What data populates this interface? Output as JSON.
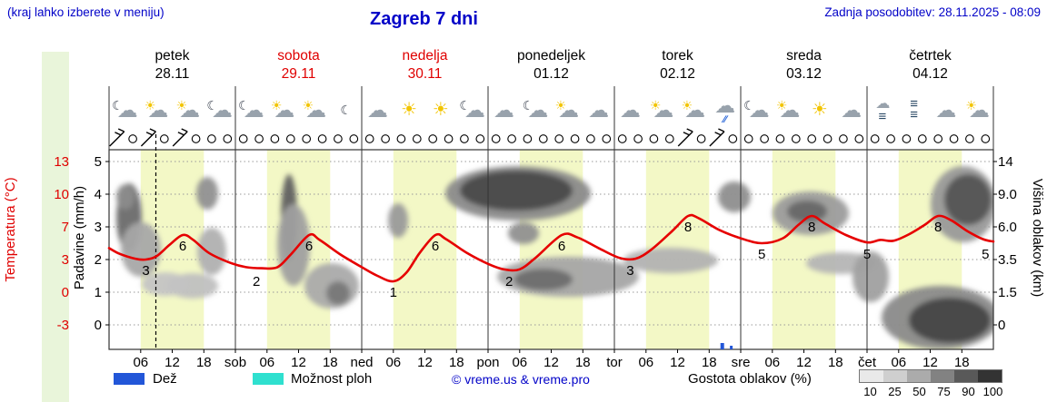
{
  "header": {
    "hint": "(kraj lahko izberete v meniju)",
    "title": "Zagreb 7 dni",
    "updated": "Zadnja posodobitev: 28.11.2025 - 08:09"
  },
  "days": [
    {
      "name": "petek",
      "date": "28.11",
      "red": false
    },
    {
      "name": "sobota",
      "date": "29.11",
      "red": true
    },
    {
      "name": "nedelja",
      "date": "30.11",
      "red": true
    },
    {
      "name": "ponedeljek",
      "date": "01.12",
      "red": false
    },
    {
      "name": "torek",
      "date": "02.12",
      "red": false
    },
    {
      "name": "sreda",
      "date": "03.12",
      "red": false
    },
    {
      "name": "četrtek",
      "date": "04.12",
      "red": false
    }
  ],
  "icons": [
    "moon-cloud",
    "cloud-sun",
    "cloud-sun",
    "moon-cloud",
    "moon-cloud",
    "cloud-sun",
    "cloud-sun",
    "moon",
    "cloud",
    "sun",
    "sun",
    "moon-cloud",
    "cloud",
    "moon-cloud",
    "cloud-sun",
    "cloud",
    "cloud",
    "cloud-sun",
    "cloud-sun",
    "rain-cloud",
    "moon-cloud",
    "cloud-sun",
    "sun",
    "cloud",
    "fog-cloud",
    "fog",
    "cloud",
    "cloud-sun"
  ],
  "axes": {
    "temp": {
      "label": "Temperatura (°C)",
      "ticks": [
        "13",
        "10",
        "7",
        "3",
        "0",
        "-3"
      ]
    },
    "precip": {
      "label": "Padavine (mm/h)",
      "ticks": [
        "5",
        "4",
        "3",
        "2",
        "1",
        "0"
      ]
    },
    "cloud": {
      "label": "Višina oblakov (km)",
      "ticks": [
        "14",
        "9.0",
        "6.0",
        "3.5",
        "1.5",
        "0"
      ]
    }
  },
  "xticks": [
    "06",
    "12",
    "18",
    "sob",
    "06",
    "12",
    "18",
    "ned",
    "06",
    "12",
    "18",
    "pon",
    "06",
    "12",
    "18",
    "tor",
    "06",
    "12",
    "18",
    "sre",
    "06",
    "12",
    "18",
    "čet",
    "06",
    "12",
    "18"
  ],
  "legend": {
    "rain": "Dež",
    "showers": "Možnost ploh",
    "copyright": "© vreme.us & vreme.pro",
    "density_title": "Gostota oblakov (%)",
    "density_ticks": [
      "10",
      "25",
      "50",
      "75",
      "90",
      "100"
    ]
  },
  "colors": {
    "accent_blue": "#0202c8",
    "red": "#e00000",
    "curve": "#e60000",
    "dayband": "#f3f8c6",
    "leftstrip": "#e9f5da",
    "rain": "#2256d8",
    "showers": "#2fe0cf",
    "density_grays": [
      "#e9e9e9",
      "#cfcfcf",
      "#ababab",
      "#828282",
      "#595959",
      "#333333"
    ]
  },
  "chart_data": {
    "type": "line",
    "title": "Zagreb 7 dni",
    "x_unit": "hours from 00:00 petek 28.11 (0-168, 7 days)",
    "ylabel_left": "Temperatura (°C) / Padavine (mm/h)",
    "ylabel_right": "Višina oblakov (km)",
    "temp_axis_ticks": [
      13,
      10,
      7,
      3,
      0,
      -3
    ],
    "precip_axis_ticks": [
      5,
      4,
      3,
      2,
      1,
      0
    ],
    "cloud_height_ticks_km": [
      14,
      9.0,
      6.0,
      3.5,
      1.5,
      0
    ],
    "now_hour": 8.9,
    "series": [
      {
        "name": "Temperatura (°C)",
        "points": [
          [
            0,
            4.4
          ],
          [
            2,
            3.7
          ],
          [
            5,
            3.1
          ],
          [
            7,
            3.0
          ],
          [
            9,
            3.4
          ],
          [
            11.5,
            4.8
          ],
          [
            14,
            6.0
          ],
          [
            16,
            5.4
          ],
          [
            19,
            3.8
          ],
          [
            23,
            2.7
          ],
          [
            26,
            2.3
          ],
          [
            29,
            2.2
          ],
          [
            32,
            2.3
          ],
          [
            34.5,
            3.6
          ],
          [
            38,
            6.0
          ],
          [
            40,
            5.4
          ],
          [
            44,
            3.6
          ],
          [
            48,
            2.3
          ],
          [
            51,
            1.5
          ],
          [
            54,
            1.0
          ],
          [
            56.5,
            1.8
          ],
          [
            59,
            3.8
          ],
          [
            62,
            6.0
          ],
          [
            64,
            5.5
          ],
          [
            68,
            3.8
          ],
          [
            72,
            2.6
          ],
          [
            75,
            2.1
          ],
          [
            78,
            2.1
          ],
          [
            81,
            3.2
          ],
          [
            86,
            6.0
          ],
          [
            89,
            5.7
          ],
          [
            93,
            4.4
          ],
          [
            97,
            3.2
          ],
          [
            100,
            3.1
          ],
          [
            103,
            4.2
          ],
          [
            107,
            6.5
          ],
          [
            110,
            8.0
          ],
          [
            112,
            7.8
          ],
          [
            116,
            6.6
          ],
          [
            120,
            5.6
          ],
          [
            124,
            5.0
          ],
          [
            128,
            5.6
          ],
          [
            131,
            7.2
          ],
          [
            133.5,
            8.0
          ],
          [
            136,
            7.3
          ],
          [
            140,
            6.0
          ],
          [
            144,
            5.1
          ],
          [
            146.5,
            5.4
          ],
          [
            149,
            5.3
          ],
          [
            152,
            6.1
          ],
          [
            155,
            7.2
          ],
          [
            157.5,
            8.0
          ],
          [
            160,
            7.6
          ],
          [
            163,
            6.5
          ],
          [
            166,
            5.5
          ],
          [
            168,
            5.2
          ]
        ]
      }
    ],
    "point_labels": [
      {
        "h": 7,
        "v": 3
      },
      {
        "h": 14,
        "v": 6
      },
      {
        "h": 28,
        "v": 2
      },
      {
        "h": 38,
        "v": 6
      },
      {
        "h": 54,
        "v": 1
      },
      {
        "h": 62,
        "v": 6
      },
      {
        "h": 76,
        "v": 2
      },
      {
        "h": 86,
        "v": 6
      },
      {
        "h": 99,
        "v": 3
      },
      {
        "h": 110,
        "v": 8
      },
      {
        "h": 124,
        "v": 5
      },
      {
        "h": 133.5,
        "v": 8
      },
      {
        "h": 144,
        "v": 5
      },
      {
        "h": 157.5,
        "v": 8
      },
      {
        "h": 166.5,
        "v": 5
      }
    ],
    "day_bands_hours": [
      6,
      18
    ],
    "rain_bars": [
      {
        "h": 116.5,
        "w": 4,
        "hp": 7
      },
      {
        "h": 118.2,
        "w": 3,
        "hp": 4
      }
    ],
    "wind_barb_slots": [
      0,
      2,
      4,
      36,
      38
    ],
    "clouds": [
      {
        "x": 22,
        "y": 75,
        "rx": 14,
        "ry": 38,
        "c": "#6a6a6a"
      },
      {
        "x": 35,
        "y": 110,
        "rx": 22,
        "ry": 30,
        "c": "#a8a8a8"
      },
      {
        "x": 18,
        "y": 52,
        "rx": 10,
        "ry": 14,
        "c": "#8c8c8c"
      },
      {
        "x": 108,
        "y": 48,
        "rx": 12,
        "ry": 18,
        "c": "#909090"
      },
      {
        "x": 113,
        "y": 112,
        "rx": 16,
        "ry": 26,
        "c": "#b0b0b0"
      },
      {
        "x": 92,
        "y": 150,
        "rx": 28,
        "ry": 14,
        "c": "#c0c0c0"
      },
      {
        "x": 198,
        "y": 75,
        "rx": 9,
        "ry": 48,
        "c": "#606060"
      },
      {
        "x": 203,
        "y": 105,
        "rx": 18,
        "ry": 45,
        "c": "#a0a0a0"
      },
      {
        "x": 245,
        "y": 150,
        "rx": 30,
        "ry": 25,
        "c": "#aaaaaa"
      },
      {
        "x": 252,
        "y": 158,
        "rx": 13,
        "ry": 13,
        "c": "#787878"
      },
      {
        "x": 318,
        "y": 78,
        "rx": 11,
        "ry": 19,
        "c": "#9a9a9a"
      },
      {
        "x": 450,
        "y": 48,
        "rx": 80,
        "ry": 30,
        "c": "#8a8a8a"
      },
      {
        "x": 448,
        "y": 45,
        "rx": 62,
        "ry": 22,
        "c": "#4a4a4a"
      },
      {
        "x": 456,
        "y": 92,
        "rx": 17,
        "ry": 12,
        "c": "#909090"
      },
      {
        "x": 505,
        "y": 140,
        "rx": 78,
        "ry": 22,
        "c": "#a5a5a5"
      },
      {
        "x": 478,
        "y": 143,
        "rx": 32,
        "ry": 12,
        "c": "#6e6e6e"
      },
      {
        "x": 618,
        "y": 122,
        "rx": 52,
        "ry": 14,
        "c": "#b2b2b2"
      },
      {
        "x": 688,
        "y": 52,
        "rx": 18,
        "ry": 17,
        "c": "#8e8e8e"
      },
      {
        "x": 772,
        "y": 70,
        "rx": 42,
        "ry": 24,
        "c": "#9c9c9c"
      },
      {
        "x": 768,
        "y": 68,
        "rx": 22,
        "ry": 12,
        "c": "#686868"
      },
      {
        "x": 805,
        "y": 125,
        "rx": 38,
        "ry": 12,
        "c": "#b5b5b5"
      },
      {
        "x": 838,
        "y": 140,
        "rx": 20,
        "ry": 28,
        "c": "#a0a0a0"
      },
      {
        "x": 940,
        "y": 60,
        "rx": 36,
        "ry": 42,
        "c": "#999999"
      },
      {
        "x": 945,
        "y": 55,
        "rx": 26,
        "ry": 28,
        "c": "#555555"
      },
      {
        "x": 915,
        "y": 185,
        "rx": 65,
        "ry": 35,
        "c": "#8a8a8a"
      },
      {
        "x": 925,
        "y": 188,
        "rx": 45,
        "ry": 25,
        "c": "#454545"
      },
      {
        "x": 62,
        "y": 148,
        "rx": 26,
        "ry": 13,
        "c": "#c4c4c4"
      }
    ]
  }
}
